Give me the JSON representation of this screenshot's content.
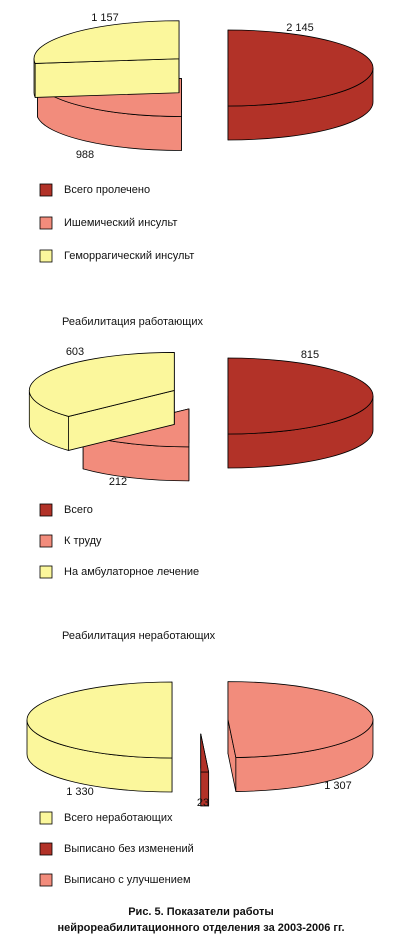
{
  "chart_data": [
    {
      "type": "pie",
      "categories": [
        "Всего пролечено",
        "Ишемический инсульт",
        "Геморрагический инсульт"
      ],
      "values": [
        2145,
        988,
        1157
      ],
      "value_labels": [
        "2 145",
        "988",
        "1 157"
      ],
      "colors": [
        "#b23228",
        "#f28c7c",
        "#fbf79c"
      ]
    },
    {
      "type": "pie",
      "title": "Реабилитация работающих",
      "categories": [
        "Всего",
        "К труду",
        "На амбулаторное лечение"
      ],
      "values": [
        815,
        212,
        603
      ],
      "colors": [
        "#b23228",
        "#f28c7c",
        "#fbf79c"
      ]
    },
    {
      "type": "pie",
      "title": "Реабилитация неработающих",
      "categories": [
        "Всего неработающих",
        "Выписано без изменений",
        "Выписано с улучшением"
      ],
      "values": [
        1330,
        23,
        1307
      ],
      "value_labels": [
        "1 330",
        "23",
        "1 307"
      ],
      "colors": [
        "#fbf79c",
        "#b23228",
        "#f28c7c"
      ]
    }
  ],
  "caption": [
    "Рис. 5.  Показатели работы",
    "нейрореабилитационного отделения за 2003-2006 гг."
  ]
}
